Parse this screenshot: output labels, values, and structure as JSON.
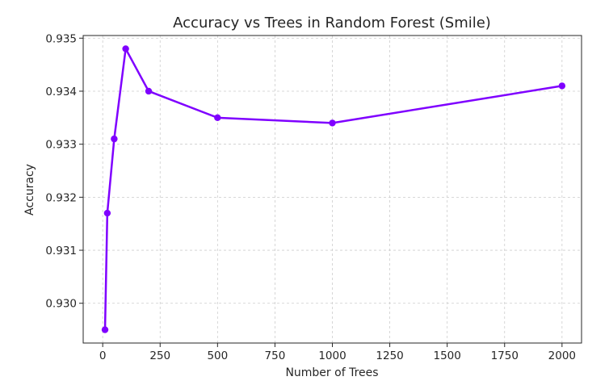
{
  "chart_data": {
    "type": "line",
    "title": "Accuracy vs Trees in Random Forest (Smile)",
    "xlabel": "Number of Trees",
    "ylabel": "Accuracy",
    "xlim": [
      -85,
      2085
    ],
    "ylim": [
      0.92925,
      0.93505
    ],
    "xticks": [
      0,
      250,
      500,
      750,
      1000,
      1250,
      1500,
      1750,
      2000
    ],
    "xtick_labels": [
      "0",
      "250",
      "500",
      "750",
      "1000",
      "1250",
      "1500",
      "1750",
      "2000"
    ],
    "yticks": [
      0.93,
      0.931,
      0.932,
      0.933,
      0.934,
      0.935
    ],
    "ytick_labels": [
      "0.930",
      "0.931",
      "0.932",
      "0.933",
      "0.934",
      "0.935"
    ],
    "grid": true,
    "series": [
      {
        "color": "#7f00ff",
        "x": [
          10,
          20,
          50,
          100,
          200,
          500,
          1000,
          2000
        ],
        "y": [
          0.9295,
          0.9317,
          0.9331,
          0.9348,
          0.934,
          0.9335,
          0.9334,
          0.9341
        ]
      }
    ]
  }
}
